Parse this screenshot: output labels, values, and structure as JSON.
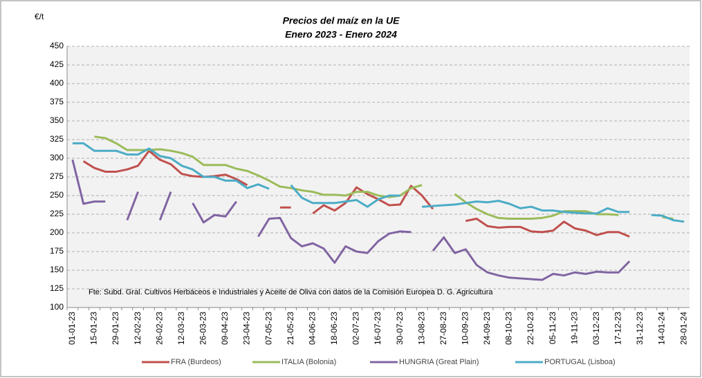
{
  "chart_data": {
    "type": "line",
    "title": "Precios del maíz en la UE",
    "subtitle": "Enero 2023 - Enero 2024",
    "y_label": "€/t",
    "annotation": "Fte: Subd. Gral. Cultivos Herbáceos e Industriales y Aceite de Oliva con datos de la Comisión Europea D. G. Agricultura",
    "categories": [
      "01-01-23",
      null,
      "15-01-23",
      null,
      "29-01-23",
      null,
      "12-02-23",
      null,
      "26-02-23",
      null,
      "12-03-23",
      null,
      "26-03-23",
      null,
      "09-04-23",
      null,
      "23-04-23",
      null,
      "07-05-23",
      null,
      "21-05-23",
      null,
      "04-06-23",
      null,
      "18-06-23",
      null,
      "02-07-23",
      null,
      "16-07-23",
      null,
      "30-07-23",
      null,
      "13-08-23",
      null,
      "27-08-23",
      null,
      "10-09-23",
      null,
      "24-09-23",
      null,
      "08-10-23",
      null,
      "22-10-23",
      null,
      "05-11-23",
      null,
      "19-11-23",
      null,
      "03-12-23",
      null,
      "17-12-23",
      null,
      "31-12-23",
      null,
      "14-01-24",
      null,
      "28-01-24"
    ],
    "series": [
      {
        "name": "FRA (Burdeos)",
        "color": "#c0504d",
        "values": [
          null,
          296,
          287,
          282,
          282,
          285,
          290,
          310,
          298,
          292,
          279,
          276,
          275,
          276,
          278,
          272,
          264,
          null,
          null,
          234,
          234,
          null,
          226,
          237,
          230,
          240,
          261,
          252,
          245,
          237,
          238,
          263,
          250,
          232,
          null,
          null,
          216,
          219,
          209,
          207,
          208,
          208,
          202,
          201,
          203,
          215,
          206,
          203,
          197,
          201,
          201,
          195,
          null,
          null,
          null,
          null,
          null
        ]
      },
      {
        "name": "ITALIA (Bolonia)",
        "color": "#9bbb59",
        "values": [
          null,
          null,
          329,
          327,
          320,
          311,
          311,
          311,
          312,
          310,
          307,
          302,
          291,
          291,
          291,
          286,
          283,
          277,
          270,
          262,
          260,
          257,
          255,
          251,
          251,
          250,
          255,
          255,
          250,
          248,
          250,
          260,
          264,
          null,
          null,
          252,
          241,
          232,
          225,
          220,
          219,
          219,
          219,
          220,
          223,
          229,
          229,
          229,
          225,
          225,
          224,
          null,
          null,
          null,
          221,
          219,
          null
        ]
      },
      {
        "name": "HUNGRIA (Great Plain)",
        "color": "#8064a2",
        "values": [
          298,
          239,
          242,
          242,
          null,
          217,
          255,
          null,
          217,
          255,
          null,
          240,
          214,
          224,
          222,
          242,
          null,
          195,
          219,
          220,
          193,
          182,
          186,
          179,
          160,
          182,
          175,
          173,
          189,
          199,
          202,
          201,
          null,
          176,
          194,
          173,
          178,
          157,
          147,
          143,
          140,
          139,
          138,
          137,
          145,
          143,
          147,
          145,
          148,
          147,
          147,
          162,
          null,
          null,
          null,
          null,
          null
        ]
      },
      {
        "name": "PORTUGAL (Lisboa)",
        "color": "#4bacc6",
        "values": [
          320,
          320,
          310,
          310,
          310,
          305,
          305,
          313,
          303,
          300,
          290,
          285,
          275,
          275,
          270,
          270,
          260,
          265,
          259,
          null,
          264,
          247,
          240,
          240,
          240,
          242,
          244,
          235,
          245,
          250,
          250,
          null,
          235,
          236,
          237,
          238,
          240,
          242,
          241,
          243,
          239,
          233,
          235,
          230,
          230,
          228,
          227,
          226,
          226,
          233,
          228,
          228,
          null,
          224,
          223,
          217,
          215
        ]
      }
    ],
    "ylim": [
      100,
      450
    ],
    "yticks": [
      100,
      125,
      150,
      175,
      200,
      225,
      250,
      275,
      300,
      325,
      350,
      375,
      400,
      425,
      450
    ],
    "grid": true,
    "legend": "bottom"
  }
}
